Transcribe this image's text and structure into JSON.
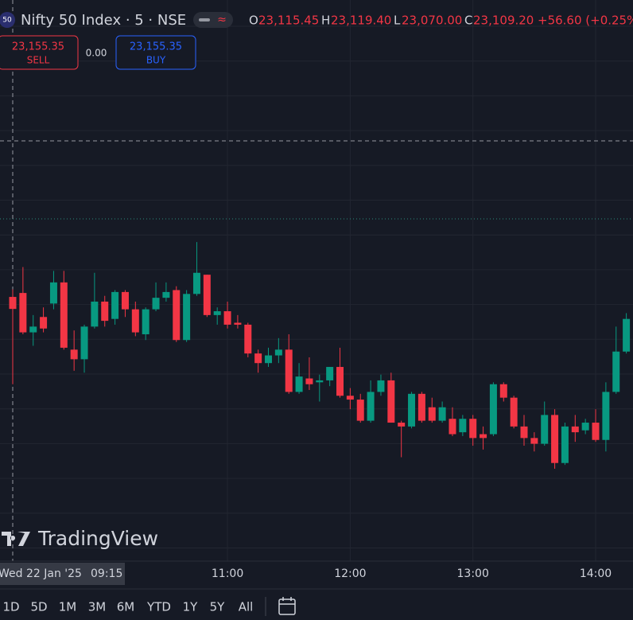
{
  "header": {
    "badge": "50",
    "title": "Nifty 50 Index · 5 · NSE",
    "ohlc": [
      {
        "label": "O",
        "value": "23,115.45"
      },
      {
        "label": "H",
        "value": "23,119.40"
      },
      {
        "label": "L",
        "value": "23,070.00"
      },
      {
        "label": "C",
        "value": "23,109.20"
      }
    ],
    "change": "+56.60 (+0.25%)"
  },
  "trade": {
    "sell_price": "23,155.35",
    "sell_label": "SELL",
    "spread": "0.00",
    "buy_price": "23,155.35",
    "buy_label": "BUY"
  },
  "watermark": "TradingView",
  "crosshair": {
    "date": "Wed 22 Jan '25",
    "time": "09:15"
  },
  "ranges": [
    "1D",
    "5D",
    "1M",
    "3M",
    "6M",
    "YTD",
    "1Y",
    "5Y",
    "All"
  ],
  "chart_data": {
    "type": "candlestick",
    "categories": [
      null,
      null,
      null,
      null,
      null,
      null,
      null,
      null,
      null,
      null,
      null,
      null,
      null,
      null,
      null,
      null,
      null,
      null,
      null,
      null,
      null,
      "11:00",
      null,
      null,
      null,
      null,
      null,
      null,
      null,
      null,
      null,
      null,
      null,
      "12:00",
      null,
      null,
      null,
      null,
      null,
      null,
      null,
      null,
      null,
      null,
      null,
      "13:00",
      null,
      null,
      null,
      null,
      null,
      null,
      null,
      null,
      null,
      null,
      null,
      "14:00",
      null,
      null,
      null
    ],
    "open": [
      23115.45,
      23117.5,
      23097,
      23105,
      23112,
      23123,
      23088,
      23083,
      23100,
      23113,
      23104,
      23118,
      23109,
      23096,
      23109,
      23115,
      23119,
      23093,
      23117,
      23127,
      23106,
      23108,
      23102,
      23101,
      23086,
      23081,
      23085,
      23088,
      23066,
      23073,
      23071,
      23072,
      23079,
      23064,
      23062,
      23051,
      23066,
      23072,
      23050,
      23048,
      23065,
      23058,
      23051,
      23052,
      23045,
      23052,
      23044,
      23044,
      23070,
      23063,
      23048,
      23042,
      23039,
      23054,
      23029,
      23048,
      23046,
      23050,
      23041,
      23066,
      23087
    ],
    "high": [
      23119.4,
      23131,
      23106,
      23110,
      23129,
      23129,
      23098,
      23101,
      23128,
      23116,
      23119,
      23119,
      23113,
      23110,
      23123,
      23123,
      23121,
      23119,
      23144,
      23127,
      23110,
      23113,
      23106,
      23102,
      23088,
      23089,
      23094,
      23096,
      23081,
      23084,
      23075,
      23079,
      23089,
      23068,
      23065,
      23072,
      23075,
      23076,
      23051,
      23066,
      23066,
      23063,
      23061,
      23058,
      23054,
      23054,
      23048,
      23071,
      23071,
      23064,
      23054,
      23045,
      23061,
      23057,
      23050,
      23054,
      23052,
      23057,
      23071,
      23100,
      23107
    ],
    "low": [
      23070,
      23096,
      23090,
      23097,
      23109,
      23088,
      23077,
      23076,
      23099,
      23100,
      23101,
      23105,
      23095,
      23093,
      23108,
      23113,
      23092,
      23092,
      23116,
      23105,
      23101,
      23099,
      23099,
      23084,
      23076,
      23079,
      23081,
      23065,
      23065,
      23067,
      23061,
      23069,
      23063,
      23057,
      23050,
      23050,
      23064,
      23050,
      23032,
      23047,
      23050,
      23050,
      23050,
      23043,
      23043,
      23038,
      23036,
      23043,
      23061,
      23047,
      23038,
      23035,
      23038,
      23026,
      23028,
      23040,
      23044,
      23040,
      23035,
      23065,
      23086
    ],
    "close": [
      23109.2,
      23097,
      23100,
      23099,
      23123,
      23089,
      23083,
      23100,
      23113,
      23103,
      23118,
      23109,
      23097,
      23109,
      23115,
      23118,
      23093,
      23117,
      23128,
      23106,
      23108,
      23101,
      23101,
      23086,
      23081,
      23085,
      23088,
      23066,
      23074,
      23070,
      23072,
      23079,
      23064,
      23062,
      23051,
      23066,
      23072,
      23050,
      23048,
      23065,
      23051,
      23051,
      23058,
      23044,
      23052,
      23042,
      23042,
      23070,
      23063,
      23048,
      23042,
      23039,
      23054,
      23029,
      23048,
      23045,
      23050,
      23041,
      23066,
      23087,
      23104
    ],
    "up_color": "#089981",
    "down_color": "#f23645",
    "ylim": [
      22980,
      23270
    ]
  }
}
